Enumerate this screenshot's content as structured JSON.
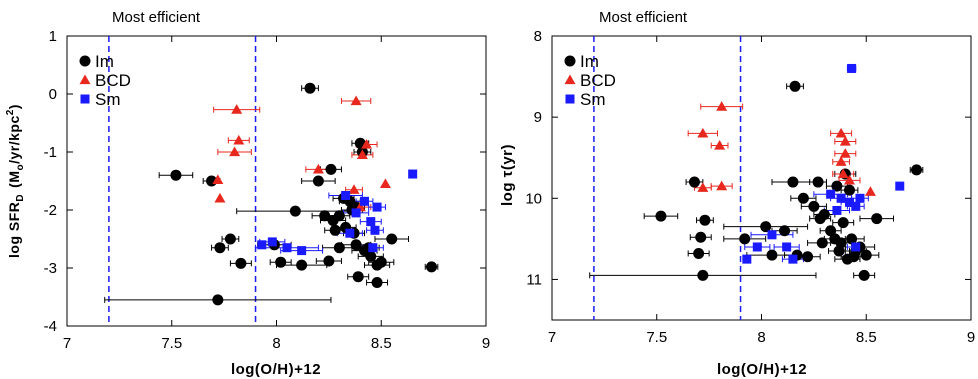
{
  "chart_data": [
    {
      "type": "scatter",
      "annotation": "Most efficient",
      "xlabel": "log(O/H)+12",
      "ylabel": "log SFR",
      "ylabel_sub": "D",
      "ylabel_units": "(M",
      "ylabel_units_sub": "o",
      "ylabel_units_tail": "/yr/kpc",
      "ylabel_units_sup": "2",
      "ylabel_units_close": ")",
      "xlim": [
        7,
        9
      ],
      "ylim": [
        -4,
        1
      ],
      "y_inverted": false,
      "xticks": [
        7,
        7.5,
        8,
        8.5,
        9
      ],
      "xtick_labels": [
        "7",
        "7.5",
        "8",
        "8.5",
        "9"
      ],
      "yticks": [
        -4,
        -3,
        -2,
        -1,
        0,
        1
      ],
      "ytick_labels": [
        "-4",
        "-3",
        "-2",
        "-1",
        "0",
        "1"
      ],
      "vlines": [
        7.2,
        7.9
      ],
      "vline_color": "#1a1aff",
      "legend_position": "top-left",
      "series": [
        {
          "name": "Im",
          "marker": "circle",
          "color": "#000000",
          "points": [
            {
              "x": 7.52,
              "y": -1.4,
              "xerr": 0.08
            },
            {
              "x": 7.69,
              "y": -1.5,
              "xerr": 0.04
            },
            {
              "x": 7.72,
              "y": -3.55,
              "xerr": 0.54
            },
            {
              "x": 7.78,
              "y": -2.5,
              "xerr": 0.04
            },
            {
              "x": 7.73,
              "y": -2.65,
              "xerr": 0.04
            },
            {
              "x": 7.83,
              "y": -2.92,
              "xerr": 0.05
            },
            {
              "x": 7.99,
              "y": -2.6,
              "xerr": 0.08
            },
            {
              "x": 8.02,
              "y": -2.9,
              "xerr": 0.05
            },
            {
              "x": 8.09,
              "y": -2.02,
              "xerr": 0.28
            },
            {
              "x": 8.12,
              "y": -2.95,
              "xerr": 0.12
            },
            {
              "x": 8.16,
              "y": 0.1,
              "xerr": 0.04
            },
            {
              "x": 8.2,
              "y": -1.5,
              "xerr": 0.08
            },
            {
              "x": 8.23,
              "y": -2.1,
              "xerr": 0.06
            },
            {
              "x": 8.25,
              "y": -2.88,
              "xerr": 0.06
            },
            {
              "x": 8.26,
              "y": -1.3,
              "xerr": 0.05
            },
            {
              "x": 8.27,
              "y": -2.18,
              "xerr": 0.06
            },
            {
              "x": 8.28,
              "y": -2.35,
              "xerr": 0.05
            },
            {
              "x": 8.3,
              "y": -2.1,
              "xerr": 0.05
            },
            {
              "x": 8.3,
              "y": -2.65,
              "xerr": 0.08
            },
            {
              "x": 8.32,
              "y": -1.8,
              "xerr": 0.05
            },
            {
              "x": 8.33,
              "y": -2.3,
              "xerr": 0.05
            },
            {
              "x": 8.35,
              "y": -1.85,
              "xerr": 0.05
            },
            {
              "x": 8.36,
              "y": -2.0,
              "xerr": 0.05
            },
            {
              "x": 8.37,
              "y": -2.4,
              "xerr": 0.05
            },
            {
              "x": 8.38,
              "y": -1.95,
              "xerr": 0.04
            },
            {
              "x": 8.38,
              "y": -2.6,
              "xerr": 0.07
            },
            {
              "x": 8.39,
              "y": -3.15,
              "xerr": 0.05
            },
            {
              "x": 8.4,
              "y": -0.85,
              "xerr": 0.04
            },
            {
              "x": 8.41,
              "y": -1.0,
              "xerr": 0.04
            },
            {
              "x": 8.42,
              "y": -2.7,
              "xerr": 0.06
            },
            {
              "x": 8.44,
              "y": -2.65,
              "xerr": 0.05
            },
            {
              "x": 8.45,
              "y": -2.8,
              "xerr": 0.06
            },
            {
              "x": 8.48,
              "y": -3.25,
              "xerr": 0.05
            },
            {
              "x": 8.48,
              "y": -2.95,
              "xerr": 0.06
            },
            {
              "x": 8.5,
              "y": -2.9,
              "xerr": 0.06
            },
            {
              "x": 8.55,
              "y": -2.5,
              "xerr": 0.08
            },
            {
              "x": 8.74,
              "y": -2.98,
              "xerr": 0.03
            }
          ]
        },
        {
          "name": "BCD",
          "marker": "triangle",
          "color": "#e8281e",
          "points": [
            {
              "x": 7.73,
              "y": -1.8,
              "xerr": 0.0
            },
            {
              "x": 7.72,
              "y": -1.48,
              "xerr": 0.0
            },
            {
              "x": 7.8,
              "y": -1.0,
              "xerr": 0.08
            },
            {
              "x": 7.82,
              "y": -0.8,
              "xerr": 0.05
            },
            {
              "x": 7.81,
              "y": -0.27,
              "xerr": 0.11
            },
            {
              "x": 8.2,
              "y": -1.3,
              "xerr": 0.06
            },
            {
              "x": 8.38,
              "y": -0.12,
              "xerr": 0.07
            },
            {
              "x": 8.37,
              "y": -1.65,
              "xerr": 0.04
            },
            {
              "x": 8.4,
              "y": -1.95,
              "xerr": 0.05
            },
            {
              "x": 8.41,
              "y": -1.05,
              "xerr": 0.05
            },
            {
              "x": 8.43,
              "y": -0.87,
              "xerr": 0.05
            },
            {
              "x": 8.52,
              "y": -1.55,
              "xerr": 0.0
            }
          ]
        },
        {
          "name": "Sm",
          "marker": "square",
          "color": "#1a1aff",
          "points": [
            {
              "x": 7.93,
              "y": -2.6,
              "xerr": 0.0
            },
            {
              "x": 7.98,
              "y": -2.55,
              "xerr": 0.06
            },
            {
              "x": 8.05,
              "y": -2.65,
              "xerr": 0.15
            },
            {
              "x": 8.12,
              "y": -2.7,
              "xerr": 0.1
            },
            {
              "x": 8.33,
              "y": -1.75,
              "xerr": 0.08
            },
            {
              "x": 8.35,
              "y": -2.4,
              "xerr": 0.06
            },
            {
              "x": 8.38,
              "y": -2.05,
              "xerr": 0.06
            },
            {
              "x": 8.42,
              "y": -1.85,
              "xerr": 0.04
            },
            {
              "x": 8.45,
              "y": -2.2,
              "xerr": 0.05
            },
            {
              "x": 8.46,
              "y": -2.65,
              "xerr": 0.05
            },
            {
              "x": 8.48,
              "y": -1.95,
              "xerr": 0.04
            },
            {
              "x": 8.47,
              "y": -2.35,
              "xerr": 0.04
            },
            {
              "x": 8.65,
              "y": -1.38,
              "xerr": 0.0
            }
          ]
        }
      ]
    },
    {
      "type": "scatter",
      "annotation": "Most efficient",
      "xlabel": "log(O/H)+12",
      "ylabel": "log τ(yr)",
      "xlim": [
        7,
        9
      ],
      "ylim": [
        8,
        11.5
      ],
      "y_inverted": true,
      "xticks": [
        7,
        7.5,
        8,
        8.5,
        9
      ],
      "xtick_labels": [
        "7",
        "7.5",
        "8",
        "8.5",
        "9"
      ],
      "yticks": [
        8,
        9,
        10,
        11
      ],
      "ytick_labels": [
        "8",
        "9",
        "10",
        "11"
      ],
      "vlines": [
        7.2,
        7.9
      ],
      "vline_color": "#1a1aff",
      "legend_position": "top-left",
      "series": [
        {
          "name": "Im",
          "marker": "circle",
          "color": "#000000",
          "points": [
            {
              "x": 7.52,
              "y": 10.22,
              "xerr": 0.08
            },
            {
              "x": 7.68,
              "y": 9.8,
              "xerr": 0.04
            },
            {
              "x": 7.72,
              "y": 10.95,
              "xerr": 0.54
            },
            {
              "x": 7.73,
              "y": 10.27,
              "xerr": 0.04
            },
            {
              "x": 7.71,
              "y": 10.48,
              "xerr": 0.05
            },
            {
              "x": 7.7,
              "y": 10.68,
              "xerr": 0.05
            },
            {
              "x": 7.92,
              "y": 10.5,
              "xerr": 0.1
            },
            {
              "x": 8.02,
              "y": 10.35,
              "xerr": 0.2
            },
            {
              "x": 8.05,
              "y": 10.7,
              "xerr": 0.12
            },
            {
              "x": 8.11,
              "y": 10.4,
              "xerr": 0.06
            },
            {
              "x": 8.15,
              "y": 9.8,
              "xerr": 0.1
            },
            {
              "x": 8.16,
              "y": 8.62,
              "xerr": 0.04
            },
            {
              "x": 8.17,
              "y": 10.7,
              "xerr": 0.06
            },
            {
              "x": 8.2,
              "y": 10.0,
              "xerr": 0.06
            },
            {
              "x": 8.22,
              "y": 10.72,
              "xerr": 0.06
            },
            {
              "x": 8.25,
              "y": 10.1,
              "xerr": 0.06
            },
            {
              "x": 8.27,
              "y": 9.8,
              "xerr": 0.04
            },
            {
              "x": 8.28,
              "y": 10.25,
              "xerr": 0.05
            },
            {
              "x": 8.29,
              "y": 10.55,
              "xerr": 0.07
            },
            {
              "x": 8.3,
              "y": 10.2,
              "xerr": 0.05
            },
            {
              "x": 8.33,
              "y": 10.4,
              "xerr": 0.05
            },
            {
              "x": 8.35,
              "y": 10.5,
              "xerr": 0.05
            },
            {
              "x": 8.36,
              "y": 9.85,
              "xerr": 0.05
            },
            {
              "x": 8.37,
              "y": 10.65,
              "xerr": 0.05
            },
            {
              "x": 8.38,
              "y": 10.55,
              "xerr": 0.05
            },
            {
              "x": 8.39,
              "y": 10.3,
              "xerr": 0.05
            },
            {
              "x": 8.4,
              "y": 9.7,
              "xerr": 0.05
            },
            {
              "x": 8.41,
              "y": 10.75,
              "xerr": 0.06
            },
            {
              "x": 8.42,
              "y": 9.9,
              "xerr": 0.04
            },
            {
              "x": 8.43,
              "y": 10.5,
              "xerr": 0.06
            },
            {
              "x": 8.44,
              "y": 10.72,
              "xerr": 0.06
            },
            {
              "x": 8.45,
              "y": 10.65,
              "xerr": 0.05
            },
            {
              "x": 8.47,
              "y": 10.6,
              "xerr": 0.07
            },
            {
              "x": 8.49,
              "y": 10.95,
              "xerr": 0.05
            },
            {
              "x": 8.5,
              "y": 10.7,
              "xerr": 0.06
            },
            {
              "x": 8.55,
              "y": 10.25,
              "xerr": 0.08
            },
            {
              "x": 8.74,
              "y": 9.65,
              "xerr": 0.03
            }
          ]
        },
        {
          "name": "BCD",
          "marker": "triangle",
          "color": "#e8281e",
          "points": [
            {
              "x": 7.72,
              "y": 9.87,
              "xerr": 0.04
            },
            {
              "x": 7.81,
              "y": 9.85,
              "xerr": 0.05
            },
            {
              "x": 7.72,
              "y": 9.2,
              "xerr": 0.07
            },
            {
              "x": 7.8,
              "y": 9.35,
              "xerr": 0.04
            },
            {
              "x": 7.81,
              "y": 8.87,
              "xerr": 0.1
            },
            {
              "x": 8.38,
              "y": 9.2,
              "xerr": 0.05
            },
            {
              "x": 8.4,
              "y": 9.3,
              "xerr": 0.05
            },
            {
              "x": 8.4,
              "y": 9.45,
              "xerr": 0.05
            },
            {
              "x": 8.38,
              "y": 9.55,
              "xerr": 0.04
            },
            {
              "x": 8.39,
              "y": 9.7,
              "xerr": 0.05
            },
            {
              "x": 8.42,
              "y": 9.78,
              "xerr": 0.05
            },
            {
              "x": 8.52,
              "y": 9.92,
              "xerr": 0.0
            }
          ]
        },
        {
          "name": "Sm",
          "marker": "square",
          "color": "#1a1aff",
          "points": [
            {
              "x": 7.93,
              "y": 10.75,
              "xerr": 0.0
            },
            {
              "x": 7.98,
              "y": 10.6,
              "xerr": 0.06
            },
            {
              "x": 8.05,
              "y": 10.45,
              "xerr": 0.1
            },
            {
              "x": 8.12,
              "y": 10.6,
              "xerr": 0.06
            },
            {
              "x": 8.15,
              "y": 10.75,
              "xerr": 0.05
            },
            {
              "x": 8.33,
              "y": 9.95,
              "xerr": 0.08
            },
            {
              "x": 8.36,
              "y": 10.15,
              "xerr": 0.06
            },
            {
              "x": 8.38,
              "y": 10.0,
              "xerr": 0.05
            },
            {
              "x": 8.42,
              "y": 10.05,
              "xerr": 0.04
            },
            {
              "x": 8.45,
              "y": 10.1,
              "xerr": 0.04
            },
            {
              "x": 8.47,
              "y": 10.0,
              "xerr": 0.04
            },
            {
              "x": 8.45,
              "y": 10.6,
              "xerr": 0.04
            },
            {
              "x": 8.43,
              "y": 8.4,
              "xerr": 0.02
            },
            {
              "x": 8.66,
              "y": 9.85,
              "xerr": 0.0
            }
          ]
        }
      ]
    }
  ]
}
